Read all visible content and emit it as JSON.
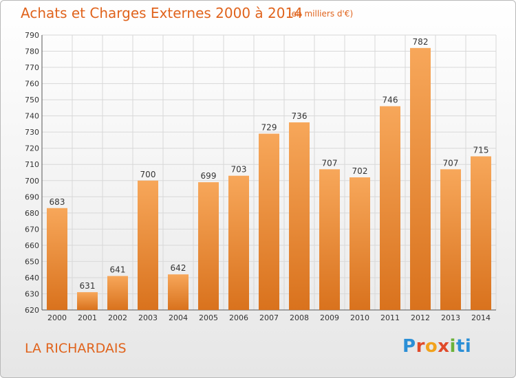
{
  "header": {
    "title": "Achats et Charges Externes 2000 à 2014",
    "subtitle": "(en milliers d'€)"
  },
  "footer": {
    "place": "LA RICHARDAIS",
    "logo_text": [
      "P",
      "r",
      "o",
      "x",
      "i",
      "ti"
    ]
  },
  "colors": {
    "title": "#e0631c",
    "bar_top": "#f7a75a",
    "bar_bottom": "#d9721d",
    "grid": "#d8d8d8"
  },
  "chart_data": {
    "type": "bar",
    "title": "Achats et Charges Externes 2000 à 2014",
    "subtitle": "(en milliers d'€)",
    "categories": [
      "2000",
      "2001",
      "2002",
      "2003",
      "2004",
      "2005",
      "2006",
      "2007",
      "2008",
      "2009",
      "2010",
      "2011",
      "2012",
      "2013",
      "2014"
    ],
    "values": [
      683,
      631,
      641,
      700,
      642,
      699,
      703,
      729,
      736,
      707,
      702,
      746,
      782,
      707,
      715
    ],
    "ylim": [
      620,
      790
    ],
    "yticks": [
      620,
      630,
      640,
      650,
      660,
      670,
      680,
      690,
      700,
      710,
      720,
      730,
      740,
      750,
      760,
      770,
      780,
      790
    ],
    "grid": true,
    "xlabel": "",
    "ylabel": ""
  }
}
